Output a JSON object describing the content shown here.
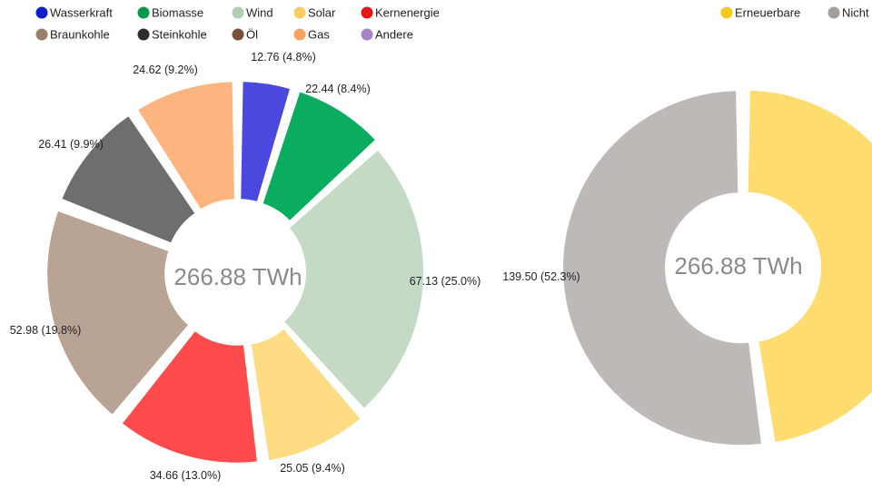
{
  "chart_data": [
    {
      "type": "pie",
      "variant": "donut",
      "center_label": "266.88 TWh",
      "legend_position": "top-left",
      "slices": [
        {
          "name": "Wasserkraft",
          "value": 12.76,
          "label": "12.76 (4.8%)",
          "color": "#4b48e0",
          "legend_color": "#0c1fc9"
        },
        {
          "name": "Biomasse",
          "value": 22.44,
          "label": "22.44 (8.4%)",
          "color": "#0aac5e",
          "legend_color": "#079a4c"
        },
        {
          "name": "Wind",
          "value": 67.13,
          "label": "67.13 (25.0%)",
          "color": "#c5dac5",
          "legend_color": "#b3cfb3"
        },
        {
          "name": "Solar",
          "value": 25.05,
          "label": "25.05 (9.4%)",
          "color": "#fedc84",
          "legend_color": "#f7cd60"
        },
        {
          "name": "Kernenergie",
          "value": 34.66,
          "label": "34.66 (13.0%)",
          "color": "#ff4b4b",
          "legend_color": "#e51515"
        },
        {
          "name": "Braunkohle",
          "value": 52.98,
          "label": "52.98 (19.8%)",
          "color": "#b8a394",
          "legend_color": "#9b7d68"
        },
        {
          "name": "Steinkohle",
          "value": 26.41,
          "label": "26.41 (9.9%)",
          "color": "#6e6e6e",
          "legend_color": "#2d2d2d"
        },
        {
          "name": "Öl",
          "value": 0,
          "label": "",
          "color": "#8b6248",
          "legend_color": "#7a5138"
        },
        {
          "name": "Gas",
          "value": 24.62,
          "label": "24.62 (9.2%)",
          "color": "#feb47e",
          "legend_color": "#f8a45f"
        },
        {
          "name": "Andere",
          "value": 0,
          "label": "",
          "color": "#b28fd0",
          "legend_color": "#a783c9"
        }
      ],
      "legend_rows": [
        [
          "Wasserkraft",
          "Biomasse",
          "Wind",
          "Solar",
          "Kernenergie"
        ],
        [
          "Braunkohle",
          "Steinkohle",
          "Öl",
          "Gas",
          "Andere"
        ]
      ]
    },
    {
      "type": "pie",
      "variant": "donut",
      "center_label": "266.88 TWh",
      "legend_position": "top-right",
      "slices": [
        {
          "name": "Erneuerbare",
          "value": 127.38,
          "label": "",
          "color": "#fedc70",
          "legend_color": "#f7c81e"
        },
        {
          "name": "Nicht",
          "value": 139.5,
          "label": "139.50 (52.3%)",
          "color": "#beb8b6",
          "legend_color": "#a39e9b"
        }
      ]
    }
  ]
}
